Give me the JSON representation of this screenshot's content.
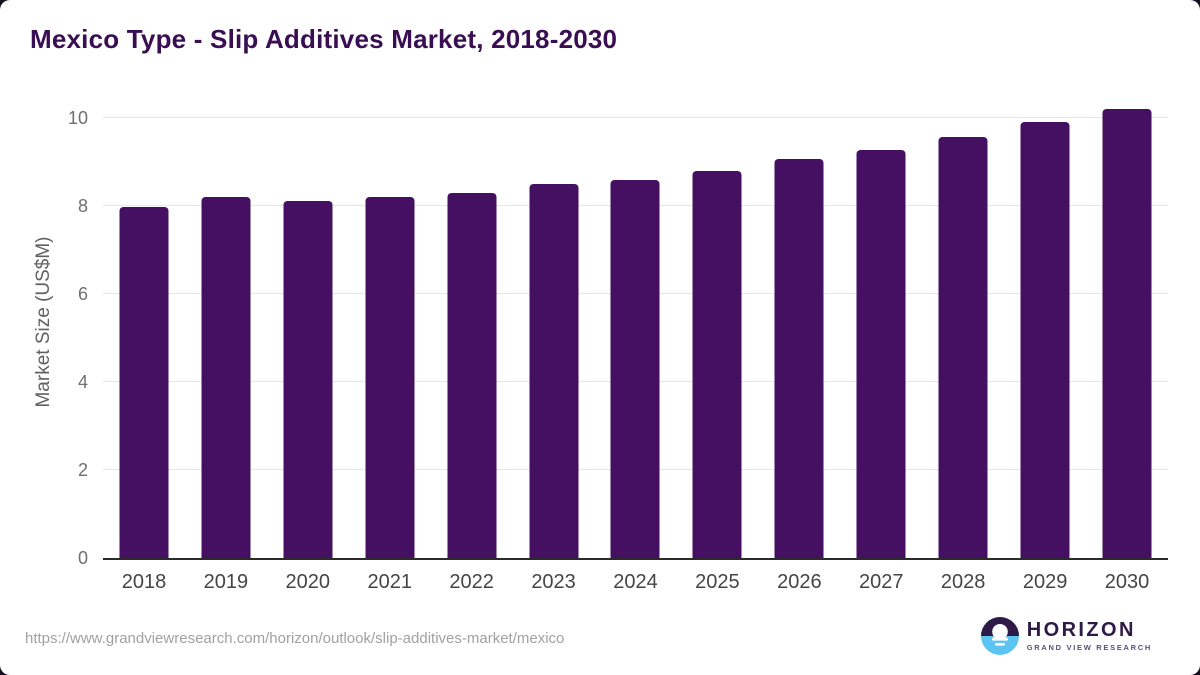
{
  "chart_data": {
    "type": "bar",
    "title": "Mexico Type - Slip Additives Market, 2018-2030",
    "xlabel": "",
    "ylabel": "Market Size (US$M)",
    "categories": [
      "2018",
      "2019",
      "2020",
      "2021",
      "2022",
      "2023",
      "2024",
      "2025",
      "2026",
      "2027",
      "2028",
      "2029",
      "2030"
    ],
    "values": [
      7.97,
      8.19,
      8.1,
      8.19,
      8.29,
      8.49,
      8.59,
      8.78,
      9.07,
      9.27,
      9.57,
      9.89,
      10.19
    ],
    "yticks": [
      0,
      2,
      4,
      6,
      8,
      10
    ],
    "ylim": [
      0,
      10.4
    ],
    "grid": true,
    "legend": false,
    "bar_color": "#451061"
  },
  "footer": {
    "source_url": "https://www.grandviewresearch.com/horizon/outlook/slip-additives-market/mexico",
    "logo": {
      "name": "HORIZON",
      "subtext": "GRAND VIEW RESEARCH"
    }
  },
  "colors": {
    "bar": "#451061",
    "title": "#3a0e52",
    "brand_purple": "#2e1a47",
    "brand_blue": "#5bc4f0"
  }
}
